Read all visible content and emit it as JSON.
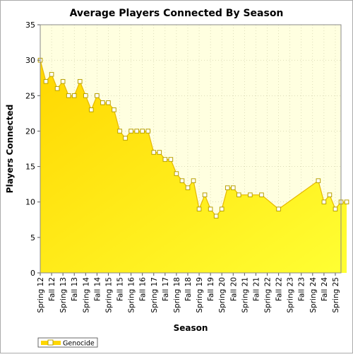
{
  "chart_data": {
    "type": "area",
    "title": "Average Players Connected By Season",
    "xlabel": "Season",
    "ylabel": "Players Connected",
    "ylim": [
      0,
      35
    ],
    "yticks": [
      0,
      5,
      10,
      15,
      20,
      25,
      30,
      35
    ],
    "grid": true,
    "legend_position": "bottom-left",
    "colors": {
      "plot_background": "#ffffe0",
      "area_top": "#ffd700",
      "area_bottom": "#ffff33",
      "line": "#e6b800",
      "marker_fill": "#ffffff",
      "marker_stroke": "#b8a000",
      "grid": "#c8c8a0",
      "border": "#888888"
    },
    "categories": [
      "Spring 12",
      "Fall 12",
      "Spring 13",
      "Fall 13",
      "Spring 14",
      "Fall 14",
      "Spring 15",
      "Fall 15",
      "Spring 16",
      "Fall 16",
      "Spring 17",
      "Fall 17",
      "Spring 18",
      "Fall 18",
      "Spring 19",
      "Fall 19",
      "Spring 20",
      "Fall 20",
      "Spring 21",
      "Fall 21",
      "Spring 22",
      "Fall 22",
      "Spring 23",
      "Fall 23",
      "Spring 24",
      "Fall 24",
      "Spring 25"
    ],
    "series": [
      {
        "name": "Genocide",
        "points": [
          [
            0,
            30
          ],
          [
            0.5,
            27
          ],
          [
            1,
            28
          ],
          [
            1.5,
            26
          ],
          [
            2,
            27
          ],
          [
            2.5,
            25
          ],
          [
            3,
            25
          ],
          [
            3.5,
            27
          ],
          [
            4,
            25
          ],
          [
            4.5,
            23
          ],
          [
            5,
            25
          ],
          [
            5.5,
            24
          ],
          [
            6,
            24
          ],
          [
            6.5,
            23
          ],
          [
            7,
            20
          ],
          [
            7.5,
            19
          ],
          [
            8,
            20
          ],
          [
            8.5,
            20
          ],
          [
            9,
            20
          ],
          [
            9.5,
            20
          ],
          [
            10,
            17
          ],
          [
            10.5,
            17
          ],
          [
            11,
            16
          ],
          [
            11.5,
            16
          ],
          [
            12,
            14
          ],
          [
            12.5,
            13
          ],
          [
            13,
            12
          ],
          [
            13.5,
            13
          ],
          [
            14,
            9
          ],
          [
            14.5,
            11
          ],
          [
            15,
            9
          ],
          [
            15.5,
            8
          ],
          [
            16,
            9
          ],
          [
            16.5,
            12
          ],
          [
            17,
            12
          ],
          [
            17.5,
            11
          ],
          [
            18.5,
            11
          ],
          [
            19.5,
            11
          ],
          [
            21,
            9
          ],
          [
            24.5,
            13
          ],
          [
            25,
            10
          ],
          [
            25.5,
            11
          ],
          [
            26,
            9
          ],
          [
            26.5,
            10
          ],
          [
            27,
            10
          ]
        ]
      }
    ]
  }
}
